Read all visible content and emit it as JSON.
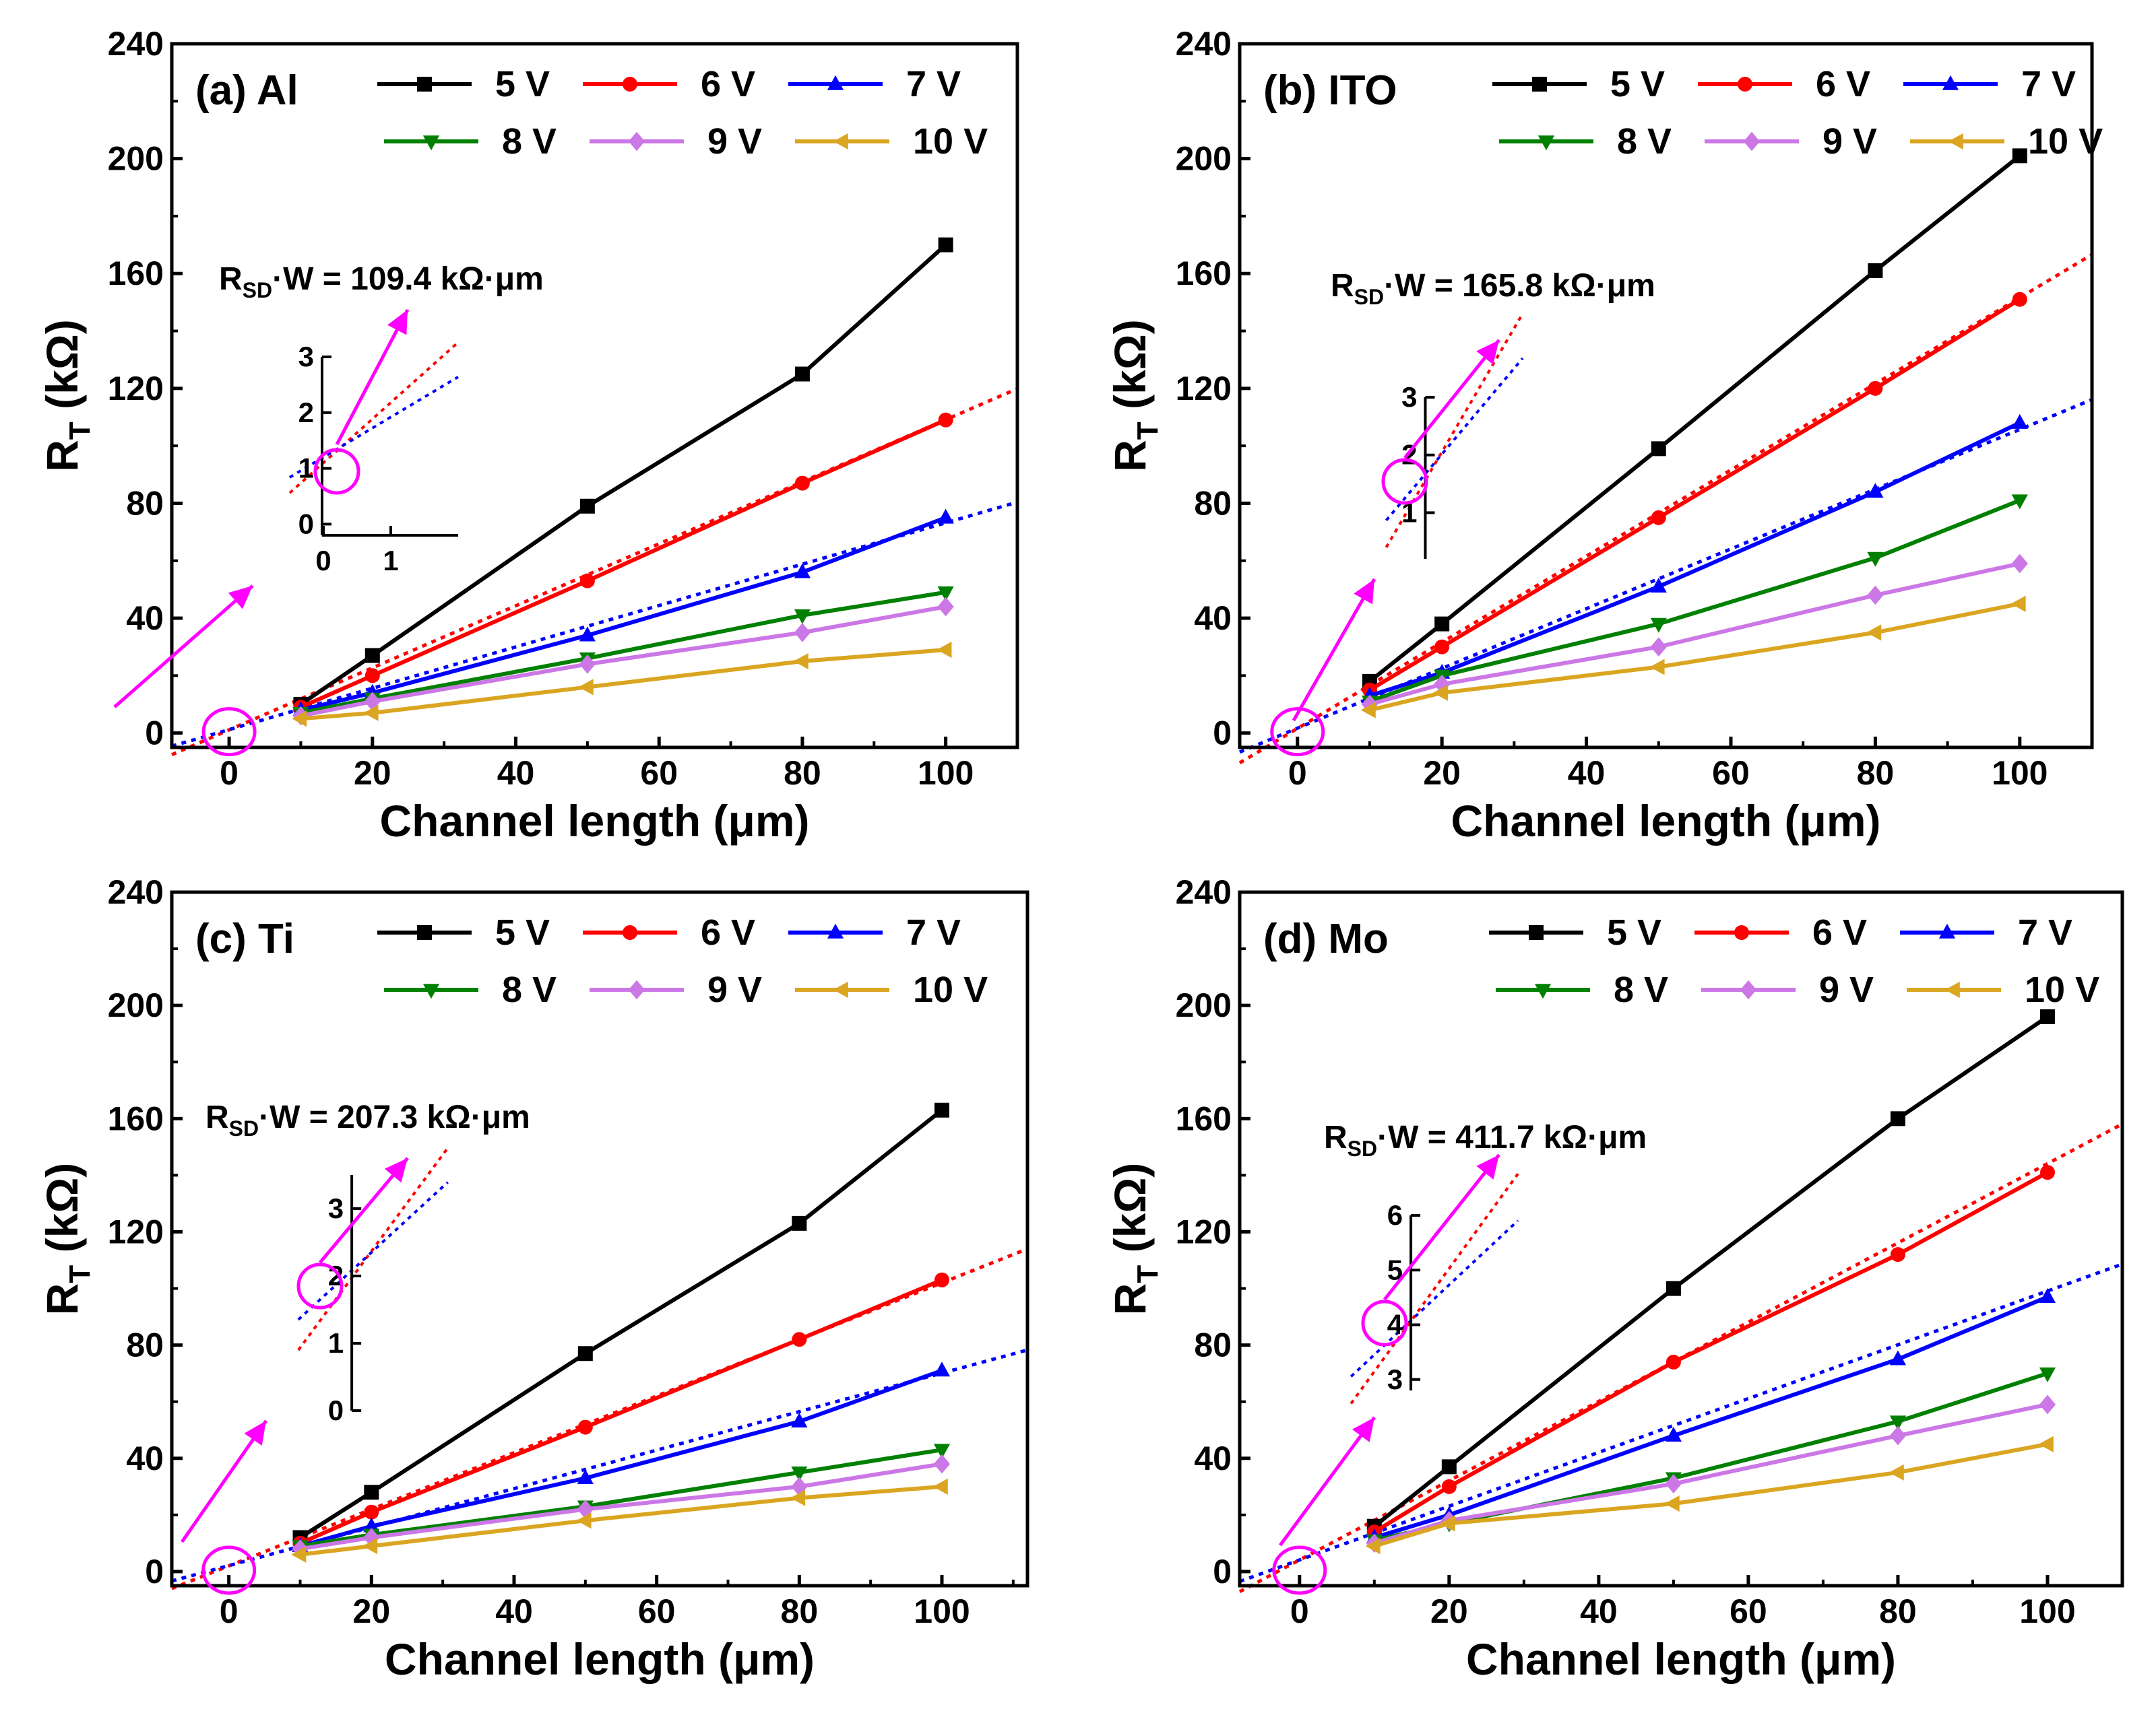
{
  "chart_data": [
    {
      "panel": "a",
      "type": "line",
      "title": "(a) Al",
      "xlabel": "Channel length (μm)",
      "ylabel": "R",
      "ylabel_sub": "T",
      "ylabel_unit": "(kΩ)",
      "xlim": [
        -8,
        110
      ],
      "ylim": [
        -5,
        240
      ],
      "xticks": [
        0,
        20,
        40,
        60,
        80,
        100
      ],
      "yticks": [
        0,
        40,
        80,
        120,
        160,
        200,
        240
      ],
      "x": [
        10,
        20,
        50,
        80,
        100
      ],
      "series": [
        {
          "name": "5 V",
          "color": "#000000",
          "marker": "square",
          "values": [
            10,
            27,
            79,
            125,
            170
          ]
        },
        {
          "name": "6 V",
          "color": "#ff0000",
          "marker": "circle",
          "values": [
            9,
            20,
            53,
            87,
            109
          ]
        },
        {
          "name": "7 V",
          "color": "#0000ff",
          "marker": "triangle-up",
          "values": [
            8,
            14,
            34,
            56,
            75
          ]
        },
        {
          "name": "8 V",
          "color": "#008000",
          "marker": "triangle-down",
          "values": [
            7,
            12,
            26,
            41,
            49
          ]
        },
        {
          "name": "9 V",
          "color": "#cc77e6",
          "marker": "diamond",
          "values": [
            6,
            11,
            24,
            35,
            44
          ]
        },
        {
          "name": "10 V",
          "color": "#daa520",
          "marker": "triangle-left",
          "values": [
            5,
            7,
            16,
            25,
            29
          ]
        }
      ],
      "fits": [
        {
          "color": "#ff0000",
          "slope": 1.08,
          "intercept": 1.1
        },
        {
          "color": "#0000ff",
          "slope": 0.72,
          "intercept": 1.2
        }
      ],
      "annotation": {
        "pre": "R",
        "sub": "SD",
        "post": "·W = 109.4 kΩ·μm"
      },
      "inset": {
        "xlim": [
          -0.2,
          1.6
        ],
        "ylim": [
          -0.2,
          3.0
        ],
        "xticks": [
          0,
          1
        ],
        "yticks": [
          0,
          1,
          2,
          3
        ],
        "fits": [
          {
            "color": "#ff0000",
            "slope": 1.08,
            "intercept": 1.1
          },
          {
            "color": "#0000ff",
            "slope": 0.72,
            "intercept": 1.2
          }
        ]
      }
    },
    {
      "panel": "b",
      "type": "line",
      "title": "(b) ITO",
      "xlabel": "Channel length (μm)",
      "ylabel": "R",
      "ylabel_sub": "T",
      "ylabel_unit": "(kΩ)",
      "xlim": [
        -8,
        110
      ],
      "ylim": [
        -5,
        240
      ],
      "xticks": [
        0,
        20,
        40,
        60,
        80,
        100
      ],
      "yticks": [
        0,
        40,
        80,
        120,
        160,
        200,
        240
      ],
      "x": [
        10,
        20,
        50,
        80,
        100
      ],
      "series": [
        {
          "name": "5 V",
          "color": "#000000",
          "marker": "square",
          "values": [
            18,
            38,
            99,
            161,
            201
          ]
        },
        {
          "name": "6 V",
          "color": "#ff0000",
          "marker": "circle",
          "values": [
            15,
            30,
            75,
            120,
            151
          ]
        },
        {
          "name": "7 V",
          "color": "#0000ff",
          "marker": "triangle-up",
          "values": [
            13,
            21,
            51,
            84,
            108
          ]
        },
        {
          "name": "8 V",
          "color": "#008000",
          "marker": "triangle-down",
          "values": [
            11,
            20,
            38,
            61,
            81
          ]
        },
        {
          "name": "9 V",
          "color": "#cc77e6",
          "marker": "diamond",
          "values": [
            10,
            17,
            30,
            48,
            59
          ]
        },
        {
          "name": "10 V",
          "color": "#daa520",
          "marker": "triangle-left",
          "values": [
            8,
            14,
            23,
            35,
            45
          ]
        }
      ],
      "fits": [
        {
          "color": "#ff0000",
          "slope": 1.5,
          "intercept": 1.6
        },
        {
          "color": "#0000ff",
          "slope": 1.04,
          "intercept": 1.7
        }
      ],
      "annotation": {
        "pre": "R",
        "sub": "SD",
        "post": "·W = 165.8 kΩ·μm"
      },
      "inset": {
        "xlim": [
          -0.5,
          1.5
        ],
        "ylim": [
          0.2,
          3.0
        ],
        "xticks": [],
        "yticks": [
          1,
          2,
          3
        ],
        "fits": [
          {
            "color": "#ff0000",
            "slope": 1.5,
            "intercept": 1.6
          },
          {
            "color": "#0000ff",
            "slope": 1.04,
            "intercept": 1.7
          }
        ]
      }
    },
    {
      "panel": "c",
      "type": "line",
      "title": "(c) Ti",
      "xlabel": "Channel length (μm)",
      "ylabel": "R",
      "ylabel_sub": "T",
      "ylabel_unit": "(kΩ)",
      "xlim": [
        -8,
        112
      ],
      "ylim": [
        -5,
        240
      ],
      "xticks": [
        0,
        20,
        40,
        60,
        80,
        100
      ],
      "yticks": [
        0,
        40,
        80,
        120,
        160,
        200,
        240
      ],
      "x": [
        10,
        20,
        50,
        80,
        100
      ],
      "series": [
        {
          "name": "5 V",
          "color": "#000000",
          "marker": "square",
          "values": [
            12,
            28,
            77,
            123,
            163
          ]
        },
        {
          "name": "6 V",
          "color": "#ff0000",
          "marker": "circle",
          "values": [
            10,
            21,
            51,
            82,
            103
          ]
        },
        {
          "name": "7 V",
          "color": "#0000ff",
          "marker": "triangle-up",
          "values": [
            9,
            16,
            33,
            53,
            71
          ]
        },
        {
          "name": "8 V",
          "color": "#008000",
          "marker": "triangle-down",
          "values": [
            9,
            13,
            23,
            35,
            43
          ]
        },
        {
          "name": "9 V",
          "color": "#cc77e6",
          "marker": "diamond",
          "values": [
            8,
            12,
            22,
            30,
            38
          ]
        },
        {
          "name": "10 V",
          "color": "#daa520",
          "marker": "triangle-left",
          "values": [
            6,
            9,
            18,
            26,
            30
          ]
        }
      ],
      "fits": [
        {
          "color": "#ff0000",
          "slope": 1.0,
          "intercept": 2.0
        },
        {
          "color": "#0000ff",
          "slope": 0.68,
          "intercept": 2.1
        }
      ],
      "annotation": {
        "pre": "R",
        "sub": "SD",
        "post": "·W = 207.3 kΩ·μm"
      },
      "inset": {
        "xlim": [
          -0.8,
          1.5
        ],
        "ylim": [
          0.0,
          3.5
        ],
        "xticks": [],
        "yticks": [
          0,
          1,
          2,
          3
        ],
        "fits": [
          {
            "color": "#ff0000",
            "slope": 1.0,
            "intercept": 2.0
          },
          {
            "color": "#0000ff",
            "slope": 0.68,
            "intercept": 2.1
          }
        ]
      }
    },
    {
      "panel": "d",
      "type": "line",
      "title": "(d) Mo",
      "xlabel": "Channel length (μm)",
      "ylabel": "R",
      "ylabel_sub": "T",
      "ylabel_unit": "(kΩ)",
      "xlim": [
        -8,
        110
      ],
      "ylim": [
        -5,
        240
      ],
      "xticks": [
        0,
        20,
        40,
        60,
        80,
        100
      ],
      "yticks": [
        0,
        40,
        80,
        120,
        160,
        200,
        240
      ],
      "x": [
        10,
        20,
        50,
        80,
        100
      ],
      "series": [
        {
          "name": "5 V",
          "color": "#000000",
          "marker": "square",
          "values": [
            16,
            37,
            100,
            160,
            196
          ]
        },
        {
          "name": "6 V",
          "color": "#ff0000",
          "marker": "circle",
          "values": [
            14,
            30,
            74,
            112,
            141
          ]
        },
        {
          "name": "7 V",
          "color": "#0000ff",
          "marker": "triangle-up",
          "values": [
            12,
            20,
            48,
            75,
            97
          ]
        },
        {
          "name": "8 V",
          "color": "#008000",
          "marker": "triangle-down",
          "values": [
            11,
            17,
            33,
            53,
            70
          ]
        },
        {
          "name": "9 V",
          "color": "#cc77e6",
          "marker": "diamond",
          "values": [
            10,
            18,
            31,
            48,
            59
          ]
        },
        {
          "name": "10 V",
          "color": "#daa520",
          "marker": "triangle-left",
          "values": [
            9,
            17,
            24,
            35,
            45
          ]
        }
      ],
      "fits": [
        {
          "color": "#ff0000",
          "slope": 1.4,
          "intercept": 4.1
        },
        {
          "color": "#0000ff",
          "slope": 0.95,
          "intercept": 4.1
        }
      ],
      "annotation": {
        "pre": "R",
        "sub": "SD",
        "post": "·W = 411.7 kΩ·μm"
      },
      "inset": {
        "xlim": [
          -0.8,
          1.5
        ],
        "ylim": [
          2.8,
          6.0
        ],
        "xticks": [],
        "yticks": [
          3,
          4,
          5,
          6
        ],
        "fits": [
          {
            "color": "#ff0000",
            "slope": 1.4,
            "intercept": 4.1
          },
          {
            "color": "#0000ff",
            "slope": 0.95,
            "intercept": 4.1
          }
        ]
      }
    }
  ],
  "colors": {
    "highlight": "#ff00ff",
    "axes": "#000000",
    "background": "#ffffff"
  }
}
